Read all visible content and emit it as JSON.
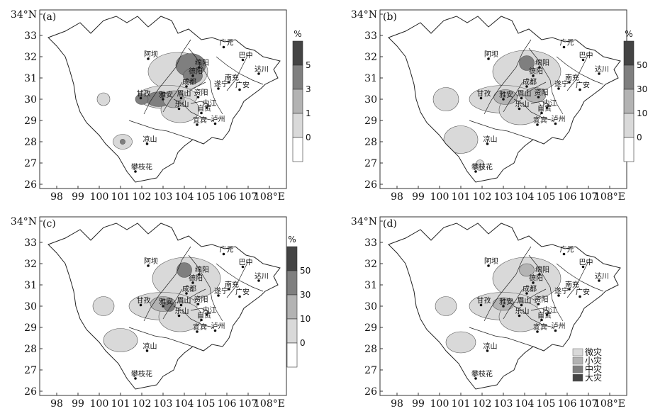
{
  "panels": [
    {
      "label": "(a)",
      "unit": "%",
      "legend_type": "colorbar",
      "levels": [
        "5",
        "3",
        "1",
        "0"
      ]
    },
    {
      "label": "(b)",
      "unit": "%",
      "legend_type": "colorbar",
      "levels": [
        "50",
        "30",
        "10",
        "0"
      ]
    },
    {
      "label": "(c)",
      "unit": "%",
      "legend_type": "colorbar",
      "levels": [
        "50",
        "30",
        "10",
        "0"
      ]
    },
    {
      "label": "(d)",
      "unit": "",
      "legend_type": "categorical",
      "levels": [
        "微灾",
        "小灾",
        "中灾",
        "大灾"
      ]
    }
  ],
  "legend_colors": [
    "#d9d9d9",
    "#b3b3b3",
    "#7f7f7f",
    "#444444"
  ],
  "colorbar_colors": [
    "#ffffff",
    "#d9d9d9",
    "#b3b3b3",
    "#7f7f7f",
    "#444444"
  ],
  "x_ticks": [
    "98",
    "99",
    "100",
    "101",
    "102",
    "103",
    "104",
    "105",
    "106",
    "107",
    "108°E"
  ],
  "y_ticks": [
    "34°N",
    "33",
    "32",
    "31",
    "30",
    "29",
    "28",
    "27",
    "26"
  ],
  "cities": [
    {
      "name": "阿坝",
      "lon": 102.3,
      "lat": 31.9
    },
    {
      "name": "绵阳",
      "lon": 104.7,
      "lat": 31.5
    },
    {
      "name": "德阳",
      "lon": 104.4,
      "lat": 31.1
    },
    {
      "name": "成都",
      "lon": 104.1,
      "lat": 30.6
    },
    {
      "name": "甘孜",
      "lon": 101.95,
      "lat": 30.05
    },
    {
      "name": "雅安",
      "lon": 103.0,
      "lat": 30.0
    },
    {
      "name": "眉山",
      "lon": 103.85,
      "lat": 30.05
    },
    {
      "name": "资阳",
      "lon": 104.65,
      "lat": 30.1
    },
    {
      "name": "内江",
      "lon": 105.05,
      "lat": 29.6
    },
    {
      "name": "乐山",
      "lon": 103.75,
      "lat": 29.55
    },
    {
      "name": "自贡",
      "lon": 104.8,
      "lat": 29.35
    },
    {
      "name": "宜宾",
      "lon": 104.6,
      "lat": 28.8
    },
    {
      "name": "泸州",
      "lon": 105.45,
      "lat": 28.85
    },
    {
      "name": "遂宁",
      "lon": 105.6,
      "lat": 30.5
    },
    {
      "name": "南充",
      "lon": 106.1,
      "lat": 30.8
    },
    {
      "name": "广安",
      "lon": 106.6,
      "lat": 30.45
    },
    {
      "name": "达川",
      "lon": 107.5,
      "lat": 31.2
    },
    {
      "name": "巴中",
      "lon": 106.75,
      "lat": 31.85
    },
    {
      "name": "广元",
      "lon": 105.85,
      "lat": 32.45
    },
    {
      "name": "凉山",
      "lon": 102.25,
      "lat": 27.9
    },
    {
      "name": "攀枝花",
      "lon": 101.7,
      "lat": 26.6
    }
  ]
}
